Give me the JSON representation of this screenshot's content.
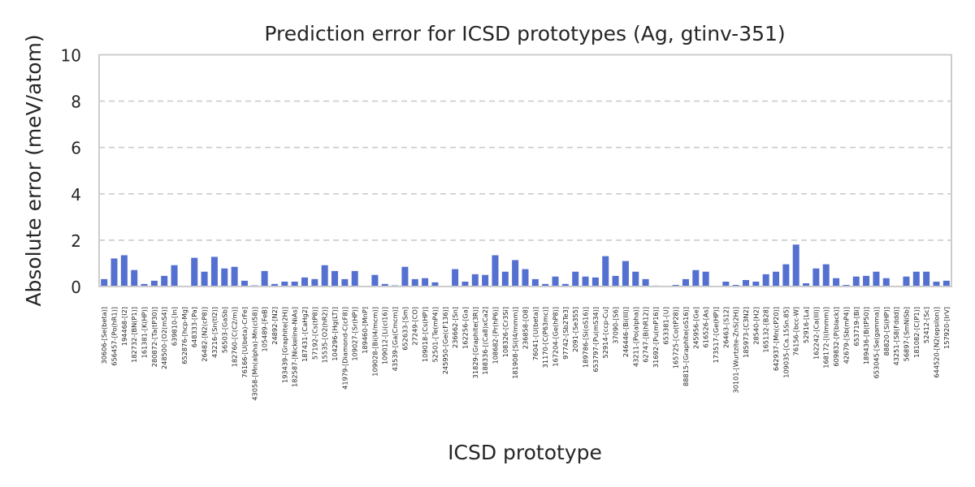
{
  "chart_data": {
    "type": "bar",
    "title": "Prediction error for ICSD prototypes (Ag, gtinv-351)",
    "xlabel": "ICSD prototype",
    "ylabel": "Absolute error (meV/atom)",
    "ylim": [
      0,
      10
    ],
    "yticks": [
      "0",
      "2",
      "4",
      "6",
      "8",
      "10"
    ],
    "grid": "horizontal dashed",
    "bar_color": "#5470d0",
    "categories": [
      "30606-[Se(beta)]",
      "656457-[Po(hR1)]",
      "194468-[I2]",
      "182732-[BN(P1)]",
      "161381-[K(HP)]",
      "280872-[Ta(tP30)]",
      "248500-[O2(mS4)]",
      "639810-[In]",
      "652876-[hcp-Mg]",
      "648333-[Pa]",
      "26482-[N2(cP8)]",
      "43216-[Sn(tI2)]",
      "56503-[GaSb]",
      "182760-[C(C2/m)]",
      "76166-[U(beta)-CrFe]",
      "43058-[Mn(alpha)-Mn(cI58)]",
      "105489-[FeB]",
      "24892-[N2]",
      "193439-[Graphite(2H)]",
      "182587-[Nickeline-NiAs]",
      "187431-[CaHg2]",
      "57192-[Cs(tP8)]",
      "15535-[O2(hR2)]",
      "104296-[Hg(LT)]",
      "41979-[Diamond-C(cF8)]",
      "109027-[Sr(HP)]",
      "189460-[MnP]",
      "109028-[Bi(I4/mcm)]",
      "109012-[Li(cI16)]",
      "43539-[Ga(Cmcm)]",
      "652633-[Sm]",
      "27249-[CO]",
      "109018-[Cs(HP)]",
      "52501-[Te(mP4)]",
      "245950-[Ge(cF136)]",
      "236662-[Sn]",
      "162256-[Ga]",
      "31829-[Graphite(3R)]",
      "188336-[(Ca8)xCa2]",
      "108682-[Pr(hP6)]",
      "108326-[Cr3Si]",
      "181908-[Si(I4/mmm)]",
      "236858-[O8]",
      "76041-[U(beta)]",
      "31170-[C(P63mc)]",
      "167204-[Ge(hP8)]",
      "97742-[Sb2Te3]",
      "2091-[Se3S5]",
      "189786-[Si(oS16)]",
      "653797-[Pu(mS34)]",
      "52914-[ccp-Cu]",
      "37090-[S6]",
      "246446-[Bi(III)]",
      "43211-[Po(alpha)]",
      "62747-[B(hR12)]",
      "31692-[Pu(mP16)]",
      "653381-[U]",
      "165725-[Co(tP28)]",
      "88815-[Graphite(oS16)]",
      "245956-[Ge]",
      "616526-[As]",
      "173517-[Ge(HP)]",
      "26463-[S12]",
      "30101-[Wurtzite-ZnS(2H)]",
      "185973-[C3N2]",
      "28540-[H2]",
      "165132-[B28]",
      "642937-[Mn(cP20)]",
      "109035-[Ca.15Sn.85]",
      "76156-[bcc-W]",
      "52916-[La]",
      "162242-[Ca(III)]",
      "168172-[I(Immm)]",
      "609832-[P(black)]",
      "42679-[Sb(mP4)]",
      "653719-[Bi]",
      "189436-[B(tP50)]",
      "653045-[Se(gamma)]",
      "88820-[Si(HP)]",
      "43251-[S8(Fddd)]",
      "56897-[SmNiSb]",
      "181082-[C(P1)]",
      "52412-[Sc]",
      "644520-[N2(epsilon)]",
      "157920-[IrV]"
    ],
    "values": [
      0.32,
      1.21,
      1.35,
      0.71,
      0.11,
      0.25,
      0.46,
      0.92,
      0.0,
      1.24,
      0.64,
      1.28,
      0.78,
      0.85,
      0.25,
      0.05,
      0.67,
      0.11,
      0.21,
      0.21,
      0.39,
      0.32,
      0.92,
      0.67,
      0.32,
      0.67,
      0.0,
      0.5,
      0.11,
      0.05,
      0.85,
      0.32,
      0.36,
      0.18,
      0.0,
      0.75,
      0.21,
      0.53,
      0.5,
      1.35,
      0.64,
      1.14,
      0.75,
      0.32,
      0.11,
      0.43,
      0.11,
      0.64,
      0.43,
      0.39,
      1.31,
      0.46,
      1.1,
      0.64,
      0.32,
      0.04,
      0.0,
      0.07,
      0.32,
      0.71,
      0.64,
      0.0,
      0.21,
      0.07,
      0.28,
      0.21,
      0.53,
      0.64,
      0.96,
      1.81,
      0.14,
      0.78,
      0.96,
      0.36,
      0.07,
      0.43,
      0.46,
      0.64,
      0.36,
      0.0,
      0.43,
      0.64,
      0.64,
      0.21,
      0.25
    ]
  }
}
